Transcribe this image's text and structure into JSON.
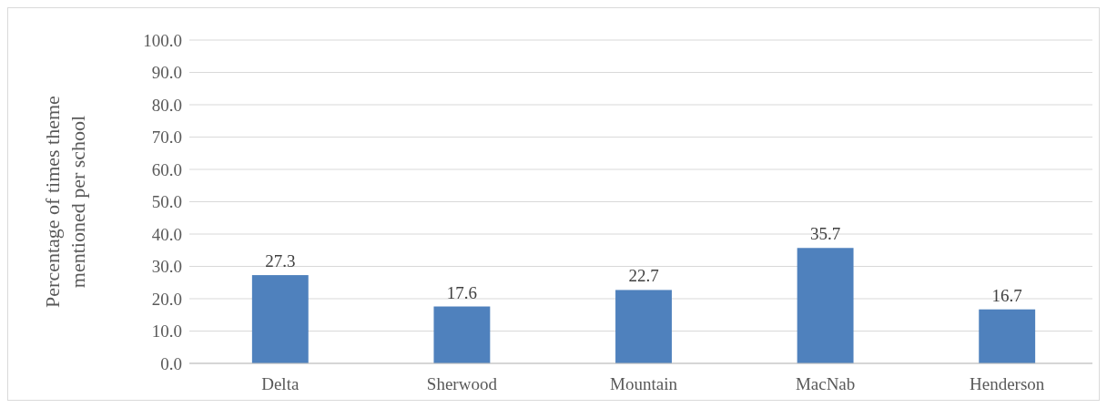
{
  "chart_data": {
    "type": "bar",
    "ylabel": "Percentage of times theme\nmentioned per school",
    "categories": [
      "Delta",
      "Sherwood",
      "Mountain",
      "MacNab",
      "Henderson"
    ],
    "values": [
      27.3,
      17.6,
      22.7,
      35.7,
      16.7
    ],
    "color": "#4f81bd",
    "ylim": [
      0,
      100
    ],
    "yticks": [
      {
        "value": 0,
        "label": "0.0"
      },
      {
        "value": 10,
        "label": "10.0"
      },
      {
        "value": 20,
        "label": "20.0"
      },
      {
        "value": 30,
        "label": "30.0"
      },
      {
        "value": 40,
        "label": "40.0"
      },
      {
        "value": 50,
        "label": "50.0"
      },
      {
        "value": 60,
        "label": "60.0"
      },
      {
        "value": 70,
        "label": "70.0"
      },
      {
        "value": 80,
        "label": "80.0"
      },
      {
        "value": 90,
        "label": "90.0"
      },
      {
        "value": 100,
        "label": "100.0"
      }
    ],
    "grid": true,
    "data_labels": true
  }
}
